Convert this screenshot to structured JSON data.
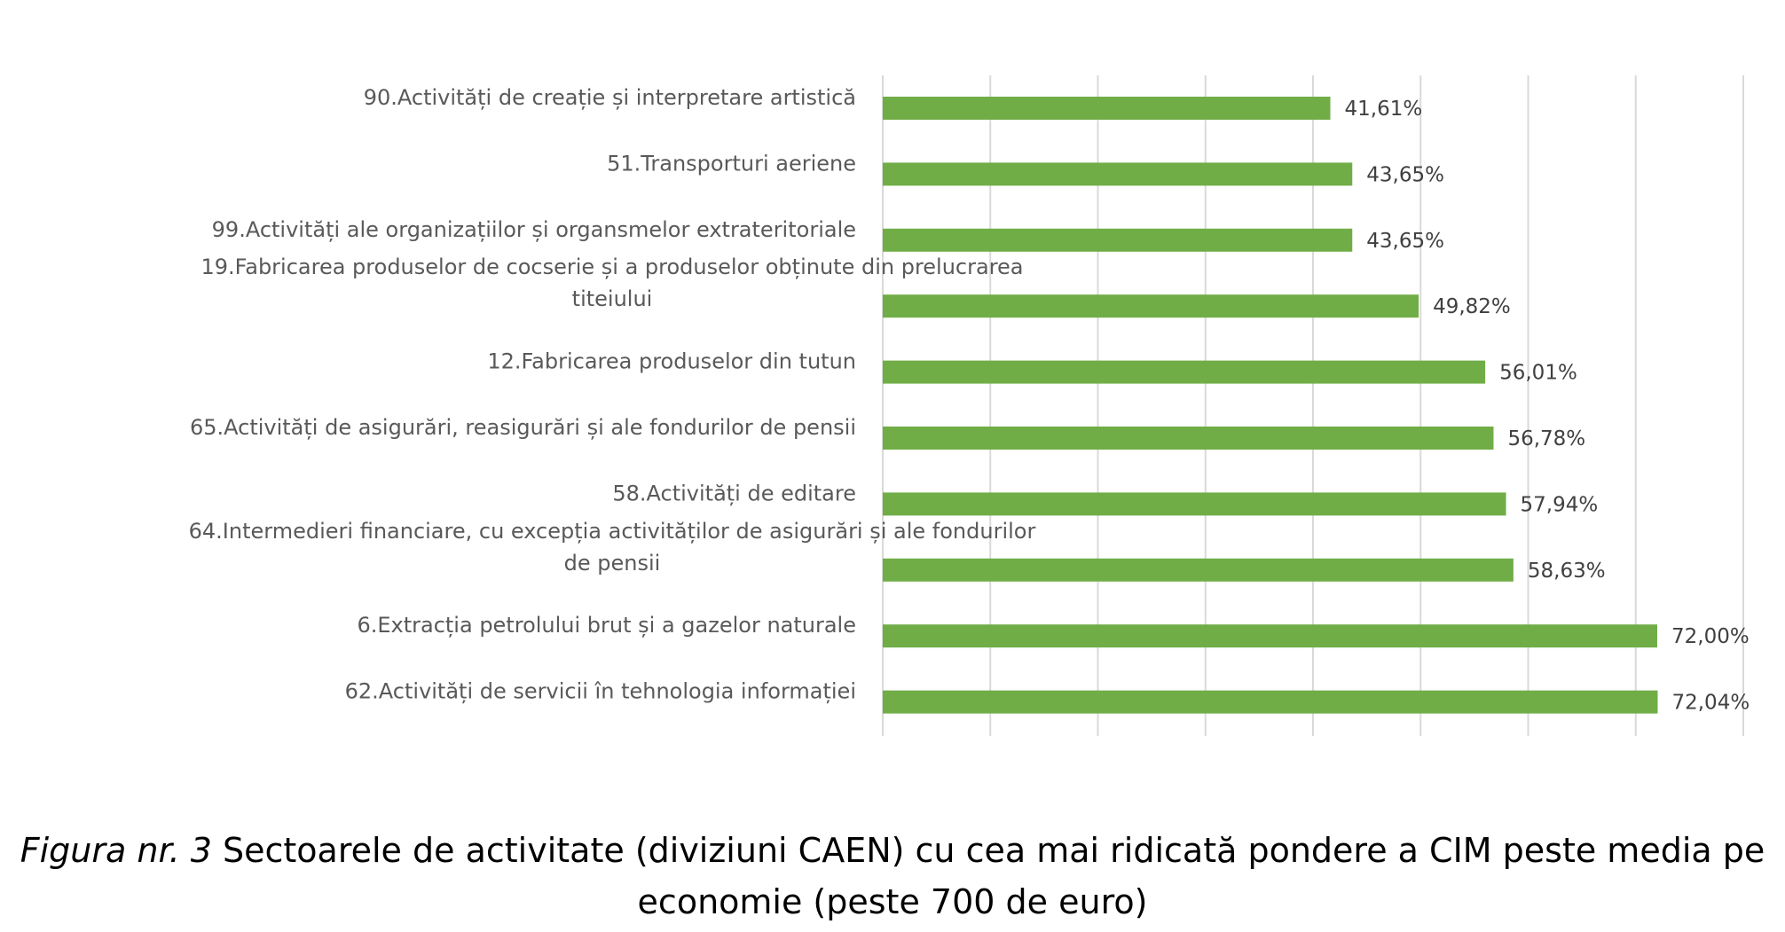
{
  "chart_data": {
    "type": "bar",
    "orientation": "horizontal",
    "categories": [
      "90.Activități de creație și interpretare artistică",
      "51.Transporturi aeriene",
      "99.Activități ale organizațiilor și organsmelor extrateritoriale",
      "19.Fabricarea produselor de cocserie și a produselor obținute din prelucrarea titeiului",
      "12.Fabricarea produselor din tutun",
      "65.Activități de asigurări, reasigurări și ale fondurilor de pensii",
      "58.Activități de editare",
      "64.Intermedieri financiare, cu excepția activităților de asigurări și ale fondurilor de pensii",
      "6.Extracția petrolului brut și a gazelor naturale",
      "62.Activități de servicii în tehnologia informației"
    ],
    "category_lines": [
      [
        "90.Activități de creație și interpretare artistică"
      ],
      [
        "51.Transporturi aeriene"
      ],
      [
        "99.Activități ale organizațiilor și organsmelor extrateritoriale"
      ],
      [
        "19.Fabricarea produselor de cocserie și a produselor obținute din prelucrarea",
        "titeiului"
      ],
      [
        "12.Fabricarea produselor din tutun"
      ],
      [
        "65.Activități de asigurări, reasigurări și ale fondurilor de pensii"
      ],
      [
        "58.Activități de editare"
      ],
      [
        "64.Intermedieri financiare, cu excepția activităților de asigurări și ale fondurilor",
        "de pensii"
      ],
      [
        "6.Extracția petrolului brut și a gazelor naturale"
      ],
      [
        "62.Activități de servicii în tehnologia informației"
      ]
    ],
    "values": [
      41.61,
      43.65,
      43.65,
      49.82,
      56.01,
      56.78,
      57.94,
      58.63,
      72.0,
      72.04
    ],
    "value_labels": [
      "41,61%",
      "43,65%",
      "43,65%",
      "49,82%",
      "56,01%",
      "56,78%",
      "57,94%",
      "58,63%",
      "72,00%",
      "72,04%"
    ],
    "xlim": [
      0,
      80
    ],
    "x_gridlines": [
      0,
      10,
      20,
      30,
      40,
      50,
      60,
      70,
      80
    ],
    "grid": true,
    "x_tick_labels_shown": false,
    "legend": "none",
    "bar_color": "#70AD47",
    "grid_color": "#D9D9D9"
  },
  "caption": {
    "figure_ref": "Figura nr. 3",
    "line1": " Sectoarele de activitate (diviziuni CAEN) cu cea mai ridicată pondere a CIM peste media pe",
    "line2": "economie (peste 700 de euro)"
  }
}
